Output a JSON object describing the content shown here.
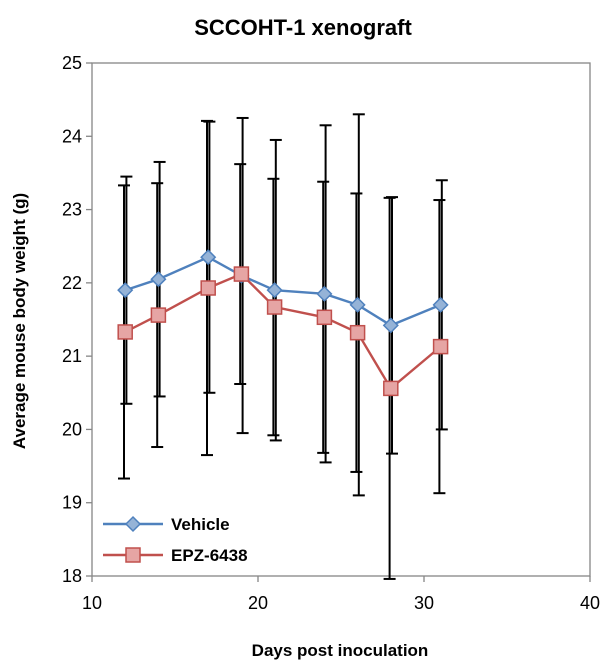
{
  "chart_data": {
    "type": "line",
    "title": "SCCOHT-1 xenograft",
    "xlabel": "Days post inoculation",
    "ylabel": "Average mouse body weight (g)",
    "xlim": [
      10,
      40
    ],
    "ylim": [
      18,
      25
    ],
    "xticks": [
      10,
      20,
      30,
      40
    ],
    "yticks": [
      18,
      19,
      20,
      21,
      22,
      23,
      24,
      25
    ],
    "grid": false,
    "legend_position": "bottom-left",
    "series": [
      {
        "name": "Vehicle",
        "color": "#4F81BD",
        "fill": "#95B3D7",
        "marker": "diamond",
        "x": [
          12,
          14,
          17,
          19,
          21,
          24,
          26,
          28,
          31
        ],
        "y": [
          21.9,
          22.05,
          22.35,
          22.1,
          21.9,
          21.85,
          21.7,
          21.42,
          21.7
        ],
        "err": [
          1.55,
          1.6,
          1.85,
          2.15,
          2.05,
          2.3,
          2.6,
          1.75,
          1.7
        ]
      },
      {
        "name": "EPZ-6438",
        "color": "#C0504D",
        "fill": "#E6A5A4",
        "marker": "square",
        "x": [
          12,
          14,
          17,
          19,
          21,
          24,
          26,
          28,
          31
        ],
        "y": [
          21.33,
          21.56,
          21.93,
          22.12,
          21.67,
          21.53,
          21.32,
          20.56,
          21.13
        ],
        "err": [
          2.0,
          1.8,
          2.28,
          1.5,
          1.75,
          1.85,
          1.9,
          2.6,
          2.0
        ]
      }
    ]
  }
}
